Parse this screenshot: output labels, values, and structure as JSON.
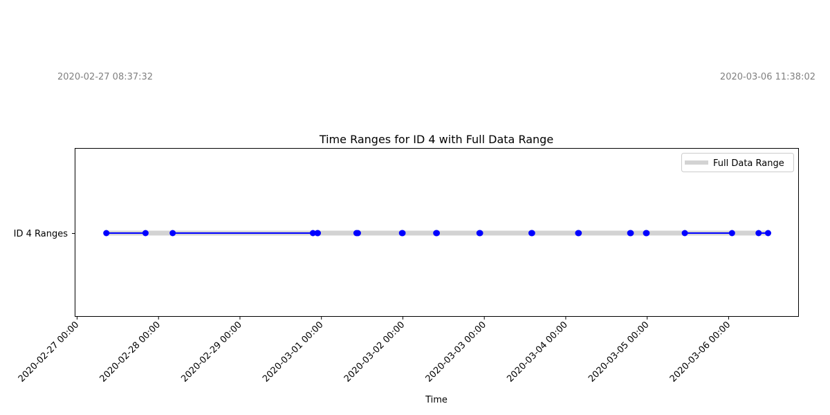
{
  "annotations": {
    "start": "2020-02-27 08:37:32",
    "end": "2020-03-06 11:38:02"
  },
  "chart_data": {
    "type": "line",
    "title": "Time Ranges for ID 4 with Full Data Range",
    "xlabel": "Time",
    "ylabel": "",
    "y_category": "ID 4 Ranges",
    "x_ticks": [
      "2020-02-27 00:00",
      "2020-02-28 00:00",
      "2020-02-29 00:00",
      "2020-03-01 00:00",
      "2020-03-02 00:00",
      "2020-03-03 00:00",
      "2020-03-04 00:00",
      "2020-03-05 00:00",
      "2020-03-06 00:00"
    ],
    "xlim": [
      "2020-02-26 23:30",
      "2020-03-06 20:30"
    ],
    "full_range": {
      "name": "Full Data Range",
      "start": "2020-02-27 08:37:32",
      "end": "2020-03-06 11:38:02",
      "color": "#d3d3d3"
    },
    "ranges": [
      {
        "start": "2020-02-27 08:37",
        "end": "2020-02-27 20:10"
      },
      {
        "start": "2020-02-28 04:10",
        "end": "2020-02-29 21:30"
      },
      {
        "start": "2020-02-29 22:50",
        "end": "2020-02-29 22:57"
      },
      {
        "start": "2020-03-01 10:20",
        "end": "2020-03-01 10:45"
      },
      {
        "start": "2020-03-01 23:45",
        "end": "2020-03-01 23:55"
      },
      {
        "start": "2020-03-02 09:50",
        "end": "2020-03-02 10:00"
      },
      {
        "start": "2020-03-02 22:35",
        "end": "2020-03-02 22:45"
      },
      {
        "start": "2020-03-03 13:55",
        "end": "2020-03-03 14:05"
      },
      {
        "start": "2020-03-04 03:40",
        "end": "2020-03-04 03:50"
      },
      {
        "start": "2020-03-04 19:00",
        "end": "2020-03-04 19:10"
      },
      {
        "start": "2020-03-04 23:40",
        "end": "2020-03-04 23:50"
      },
      {
        "start": "2020-03-05 11:05",
        "end": "2020-03-06 01:00"
      },
      {
        "start": "2020-03-06 08:50",
        "end": "2020-03-06 11:38"
      }
    ],
    "range_color": "#0000ff",
    "legend": {
      "position": "top-right",
      "entries": [
        "Full Data Range"
      ]
    },
    "grid": false
  }
}
